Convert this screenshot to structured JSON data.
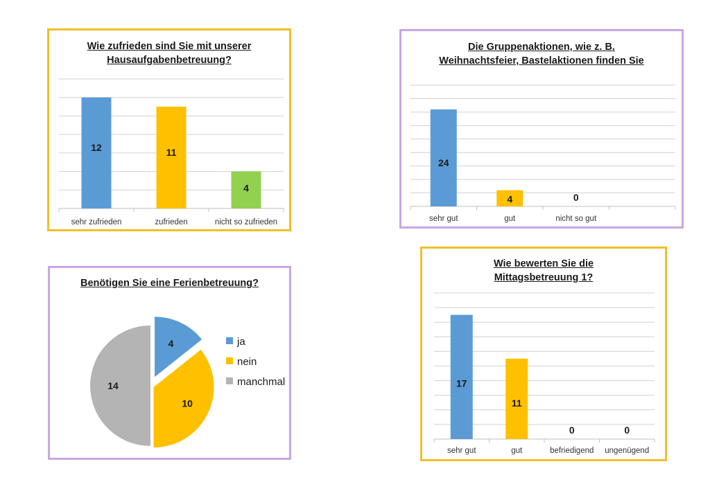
{
  "chart_data": [
    {
      "type": "bar",
      "title_lines": [
        "Wie zufrieden sind Sie mit unserer",
        "Hausaufgabenbetreuung?"
      ],
      "categories": [
        "sehr zufrieden",
        "zufrieden",
        "nicht so zufrieden"
      ],
      "values": [
        12,
        11,
        4
      ],
      "colors": [
        "#5B9BD5",
        "#FFC000",
        "#92D050"
      ],
      "ylim": [
        0,
        14
      ],
      "grid": true
    },
    {
      "type": "bar",
      "title_lines": [
        "Die Gruppenaktionen, wie z. B.",
        "Weihnachtsfeier, Bastelaktionen finden Sie"
      ],
      "categories": [
        "sehr gut",
        "gut",
        "nicht so gut",
        ""
      ],
      "values": [
        24,
        4,
        0,
        null
      ],
      "colors": [
        "#5B9BD5",
        "#FFC000",
        "#A5A5A5",
        "#A5A5A5"
      ],
      "ylim": [
        0,
        30
      ],
      "grid": true
    },
    {
      "type": "pie",
      "title_lines": [
        "Benötigen Sie eine Ferienbetreuung?"
      ],
      "categories": [
        "ja",
        "nein",
        "manchmal"
      ],
      "values": [
        4,
        10,
        14
      ],
      "colors": [
        "#5B9BD5",
        "#FFC000",
        "#B4B4B4"
      ],
      "legend": "right"
    },
    {
      "type": "bar",
      "title_lines": [
        "Wie bewerten Sie die",
        "Mittagsbetreuung 1?"
      ],
      "categories": [
        "sehr gut",
        "gut",
        "befriedigend",
        "ungenügend"
      ],
      "values": [
        17,
        11,
        0,
        0
      ],
      "colors": [
        "#5B9BD5",
        "#FFC000",
        "#A5A5A5",
        "#A5A5A5"
      ],
      "ylim": [
        0,
        20
      ],
      "grid": true
    }
  ]
}
